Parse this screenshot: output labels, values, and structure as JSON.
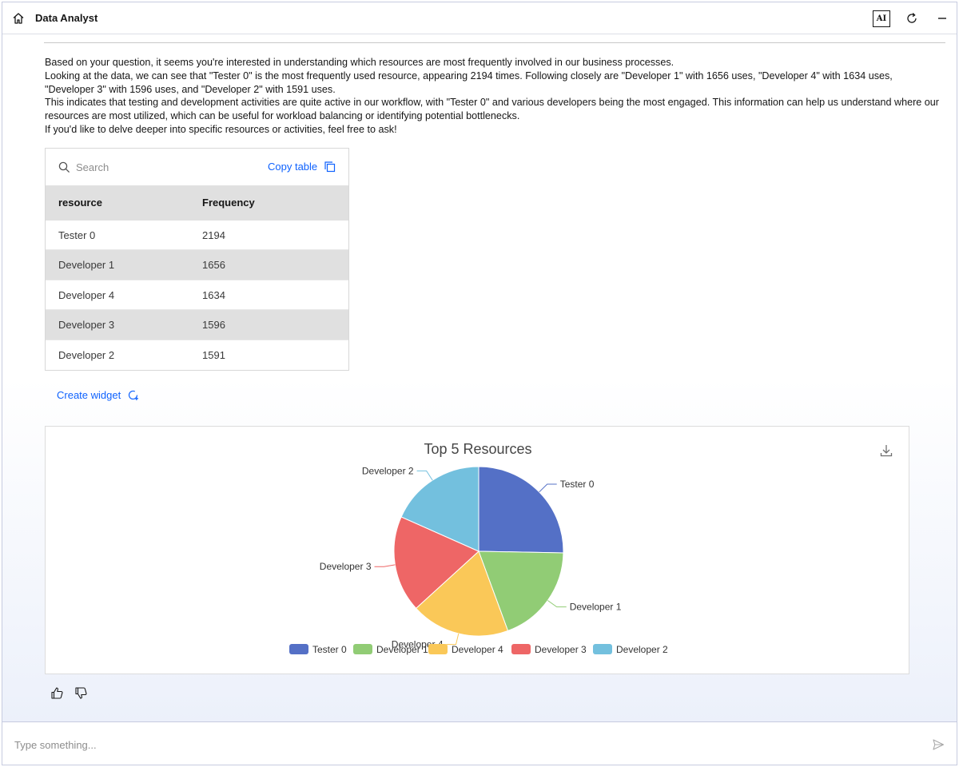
{
  "header": {
    "title": "Data Analyst",
    "ai_badge": "AI",
    "icons": [
      "home-icon",
      "refresh-icon",
      "minimize-icon"
    ]
  },
  "message": {
    "paragraphs": [
      "Based on your question, it seems you're interested in understanding which resources are most frequently involved in our business processes.",
      "Looking at the data, we can see that \"Tester 0\" is the most frequently used resource, appearing 2194 times. Following closely are \"Developer 1\" with 1656 uses, \"Developer 4\" with 1634 uses, \"Developer 3\" with 1596 uses, and \"Developer 2\" with 1591 uses.",
      "This indicates that testing and development activities are quite active in our workflow, with \"Tester 0\" and various developers being the most engaged. This information can help us understand where our resources are most utilized, which can be useful for workload balancing or identifying potential bottlenecks.",
      "If you'd like to delve deeper into specific resources or activities, feel free to ask!"
    ]
  },
  "table": {
    "search_placeholder": "Search",
    "copy_label": "Copy table",
    "columns": [
      "resource",
      "Frequency"
    ],
    "rows": [
      [
        "Tester 0",
        "2194"
      ],
      [
        "Developer 1",
        "1656"
      ],
      [
        "Developer 4",
        "1634"
      ],
      [
        "Developer 3",
        "1596"
      ],
      [
        "Developer 2",
        "1591"
      ]
    ]
  },
  "create_widget_label": "Create widget",
  "chart_data": {
    "type": "pie",
    "title": "Top 5 Resources",
    "categories": [
      "Tester 0",
      "Developer 1",
      "Developer 4",
      "Developer 3",
      "Developer 2"
    ],
    "values": [
      2194,
      1656,
      1634,
      1596,
      1591
    ],
    "colors": [
      "#5470c6",
      "#91cc75",
      "#fac858",
      "#ee6666",
      "#73c0de"
    ],
    "legend_position": "bottom"
  },
  "feedback": {
    "icons": [
      "thumbs-up-icon",
      "thumbs-down-icon"
    ]
  },
  "input": {
    "placeholder": "Type something..."
  }
}
